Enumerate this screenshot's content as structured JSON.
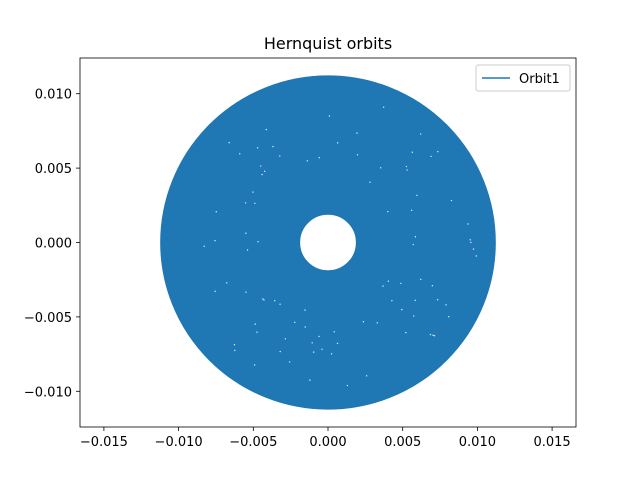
{
  "chart_data": {
    "type": "line",
    "title": "Hernquist orbits",
    "xlabel": "",
    "ylabel": "",
    "xlim": [
      -0.0166,
      0.0166
    ],
    "ylim": [
      -0.0124,
      0.0124
    ],
    "xticks": [
      -0.015,
      -0.01,
      -0.005,
      0.0,
      0.005,
      0.01,
      0.015
    ],
    "xtick_labels": [
      "−0.015",
      "−0.010",
      "−0.005",
      "0.000",
      "0.005",
      "0.010",
      "0.015"
    ],
    "yticks": [
      -0.01,
      -0.005,
      0.0,
      0.005,
      0.01
    ],
    "ytick_labels": [
      "−0.010",
      "−0.005",
      "0.000",
      "0.005",
      "0.010"
    ],
    "grid": false,
    "legend_position": "upper right",
    "series": [
      {
        "name": "Orbit1",
        "color": "#1f77b4",
        "orbit": {
          "x": [
            0.0,
            0.0112,
            0.0,
            -0.0112,
            0.0,
            0.0019,
            0.0,
            -0.0019,
            0.0
          ],
          "y": [
            0.0019,
            0.0,
            0.0112,
            0.0,
            -0.0112,
            0.0,
            -0.0019,
            0.0,
            0.0019
          ],
          "r_outer": 0.0112,
          "r_inner": 0.0019
        }
      }
    ]
  }
}
